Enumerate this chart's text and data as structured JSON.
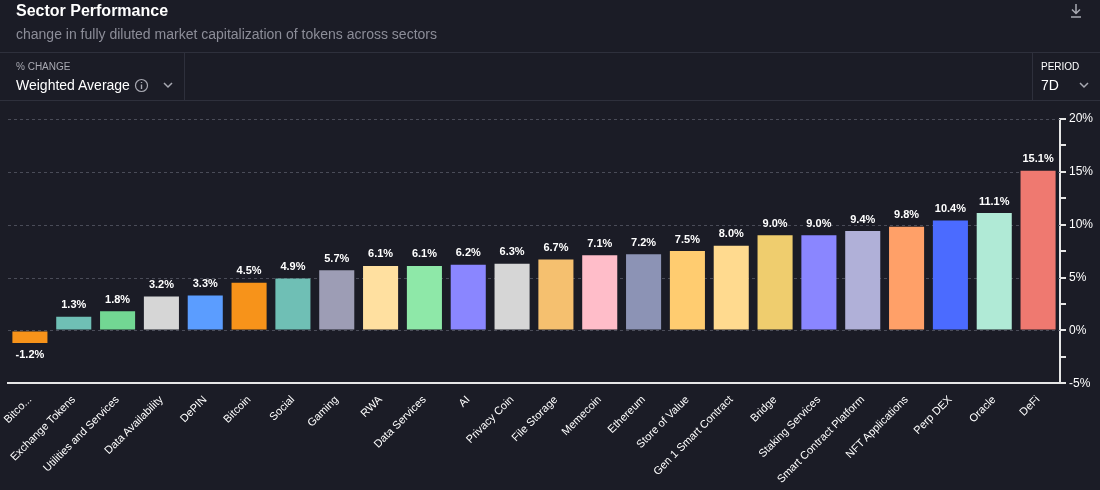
{
  "chart_data": {
    "type": "bar",
    "title": "Sector Performance",
    "subtitle": "change in fully diluted market capitalization of tokens across sectors",
    "annotations": [
      "% CHANGE",
      "Weighted Average",
      "PERIOD",
      "7D"
    ],
    "categories": [
      "Bitco...",
      "Exchange Tokens",
      "Utilities and Services",
      "Data Availability",
      "DePIN",
      "Bitcoin",
      "Social",
      "Gaming",
      "RWA",
      "Data Services",
      "AI",
      "Privacy Coin",
      "File Storage",
      "Memecoin",
      "Ethereum",
      "Store of Value",
      "Gen 1 Smart Contract",
      "Bridge",
      "Staking Services",
      "Smart Contract Platform",
      "NFT Applications",
      "Perp DEX",
      "Oracle",
      "DeFi"
    ],
    "values": [
      -1.2,
      1.3,
      1.8,
      3.2,
      3.3,
      4.5,
      4.9,
      5.7,
      6.1,
      6.1,
      6.2,
      6.3,
      6.7,
      7.1,
      7.2,
      7.5,
      8.0,
      9.0,
      9.0,
      9.4,
      9.8,
      10.4,
      11.1,
      15.1
    ],
    "value_labels": [
      "-1.2%",
      "1.3%",
      "1.8%",
      "3.2%",
      "3.3%",
      "4.5%",
      "4.9%",
      "5.7%",
      "6.1%",
      "6.1%",
      "6.2%",
      "6.3%",
      "6.7%",
      "7.1%",
      "7.2%",
      "7.5%",
      "8.0%",
      "9.0%",
      "9.0%",
      "9.4%",
      "9.8%",
      "10.4%",
      "11.1%",
      "15.1%"
    ],
    "colors": [
      "#f7931a",
      "#6fbfb5",
      "#72d793",
      "#d6d6d6",
      "#5b9dff",
      "#f7931a",
      "#6fbfb5",
      "#9d9db5",
      "#ffe0a0",
      "#8ee8a8",
      "#8a86ff",
      "#d6d6d6",
      "#f5c06f",
      "#ffbdc9",
      "#8c93b5",
      "#ffcc70",
      "#ffda8f",
      "#efcd6e",
      "#8a86ff",
      "#b0b0d8",
      "#ffa068",
      "#4b6bff",
      "#b0ead6",
      "#ef7970"
    ],
    "ylim": [
      -5,
      20
    ],
    "yticks": [
      {
        "value": -5,
        "label": "-5%"
      },
      {
        "value": -2.5,
        "label": null
      },
      {
        "value": 0,
        "label": "0%"
      },
      {
        "value": 2.5,
        "label": null
      },
      {
        "value": 5,
        "label": "5%"
      },
      {
        "value": 7.5,
        "label": null
      },
      {
        "value": 10,
        "label": "10%"
      },
      {
        "value": 12.5,
        "label": null
      },
      {
        "value": 15,
        "label": "15%"
      },
      {
        "value": 17.5,
        "label": null
      },
      {
        "value": 20,
        "label": "20%"
      }
    ],
    "grid": "y",
    "legend": false
  }
}
